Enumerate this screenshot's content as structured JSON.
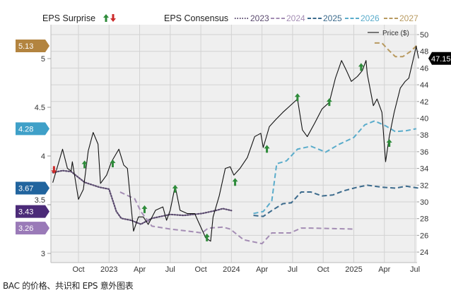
{
  "chart_data": {
    "type": "line",
    "title": "",
    "caption": "BAC 的价格、共识和 EPS 意外图表",
    "x_unit": "decimal year",
    "xlim": [
      2022.525,
      2025.53
    ],
    "x_ticks": [
      {
        "x": 2022.75,
        "label": "Oct"
      },
      {
        "x": 2023.0,
        "label": "2023"
      },
      {
        "x": 2023.25,
        "label": "Apr"
      },
      {
        "x": 2023.5,
        "label": "Jul"
      },
      {
        "x": 2023.75,
        "label": "Oct"
      },
      {
        "x": 2024.0,
        "label": "2024"
      },
      {
        "x": 2024.25,
        "label": "Apr"
      },
      {
        "x": 2024.5,
        "label": "Jul"
      },
      {
        "x": 2024.75,
        "label": "Oct"
      },
      {
        "x": 2025.0,
        "label": "2025"
      },
      {
        "x": 2025.25,
        "label": "Apr"
      },
      {
        "x": 2025.5,
        "label": "Jul"
      }
    ],
    "left_axis": {
      "label": "EPS",
      "ticks": [
        "5",
        "4.5",
        "4",
        "3.5",
        "3"
      ],
      "tick_values": [
        5,
        4.5,
        4,
        3.5,
        3
      ],
      "ylim": [
        2.9,
        5.2
      ]
    },
    "right_axis": {
      "label": "Price ($)",
      "ticks": [
        "50",
        "48",
        "46",
        "44",
        "42",
        "40",
        "38",
        "36",
        "34",
        "32",
        "30",
        "28",
        "26",
        "24"
      ],
      "tick_values": [
        50,
        48,
        46,
        44,
        42,
        40,
        38,
        36,
        34,
        32,
        30,
        28,
        26,
        24
      ],
      "ylim": [
        23,
        51.2
      ]
    },
    "legend": {
      "surprise_label": "EPS Surprise",
      "consensus_label": "EPS Consensus",
      "price_label": "Price ($)",
      "placement": "top"
    },
    "price_series": {
      "name": "Price ($)",
      "color": "#111111",
      "last_value_label": "47.15",
      "points": [
        [
          2022.54,
          32.3
        ],
        [
          2022.62,
          36.3
        ],
        [
          2022.66,
          34.0
        ],
        [
          2022.69,
          33.7
        ],
        [
          2022.7,
          34.8
        ],
        [
          2022.75,
          30.3
        ],
        [
          2022.79,
          31.5
        ],
        [
          2022.83,
          36.1
        ],
        [
          2022.87,
          38.3
        ],
        [
          2022.91,
          36.9
        ],
        [
          2022.93,
          32.2
        ],
        [
          2022.98,
          33.2
        ],
        [
          2023.02,
          34.8
        ],
        [
          2023.08,
          36.3
        ],
        [
          2023.12,
          34.4
        ],
        [
          2023.15,
          34.0
        ],
        [
          2023.2,
          26.5
        ],
        [
          2023.24,
          28.2
        ],
        [
          2023.28,
          28.2
        ],
        [
          2023.32,
          27.3
        ],
        [
          2023.38,
          29.0
        ],
        [
          2023.44,
          29.4
        ],
        [
          2023.47,
          27.8
        ],
        [
          2023.5,
          29.0
        ],
        [
          2023.54,
          31.9
        ],
        [
          2023.58,
          29.0
        ],
        [
          2023.64,
          28.6
        ],
        [
          2023.7,
          28.6
        ],
        [
          2023.74,
          27.3
        ],
        [
          2023.79,
          25.7
        ],
        [
          2023.83,
          25.3
        ],
        [
          2023.85,
          28.2
        ],
        [
          2023.9,
          30.7
        ],
        [
          2023.95,
          34.0
        ],
        [
          2023.99,
          34.2
        ],
        [
          2024.02,
          33.2
        ],
        [
          2024.07,
          34.0
        ],
        [
          2024.13,
          35.3
        ],
        [
          2024.19,
          37.8
        ],
        [
          2024.24,
          38.2
        ],
        [
          2024.26,
          36.5
        ],
        [
          2024.31,
          39.0
        ],
        [
          2024.36,
          39.8
        ],
        [
          2024.42,
          40.7
        ],
        [
          2024.48,
          41.5
        ],
        [
          2024.54,
          42.3
        ],
        [
          2024.58,
          38.6
        ],
        [
          2024.62,
          37.8
        ],
        [
          2024.68,
          39.4
        ],
        [
          2024.74,
          41.1
        ],
        [
          2024.8,
          41.9
        ],
        [
          2024.85,
          44.8
        ],
        [
          2024.9,
          46.9
        ],
        [
          2024.94,
          45.7
        ],
        [
          2024.98,
          44.4
        ],
        [
          2025.03,
          45.0
        ],
        [
          2025.07,
          45.7
        ],
        [
          2025.1,
          46.9
        ],
        [
          2025.11,
          45.3
        ],
        [
          2025.16,
          41.5
        ],
        [
          2025.19,
          42.3
        ],
        [
          2025.23,
          40.7
        ],
        [
          2025.26,
          34.8
        ],
        [
          2025.29,
          37.8
        ],
        [
          2025.33,
          40.7
        ],
        [
          2025.38,
          43.6
        ],
        [
          2025.42,
          44.4
        ],
        [
          2025.45,
          44.8
        ],
        [
          2025.49,
          47.3
        ],
        [
          2025.51,
          48.6
        ],
        [
          2025.53,
          47.15
        ]
      ]
    },
    "consensus_series": [
      {
        "name": "2023",
        "color": "#5a4a6e",
        "style": "dotted",
        "points": [
          [
            2022.54,
            3.83
          ],
          [
            2022.62,
            3.85
          ],
          [
            2022.69,
            3.84
          ],
          [
            2022.74,
            3.79
          ],
          [
            2022.8,
            3.73
          ],
          [
            2022.92,
            3.68
          ],
          [
            2023.0,
            3.66
          ],
          [
            2023.06,
            3.43
          ],
          [
            2023.1,
            3.36
          ],
          [
            2023.18,
            3.34
          ],
          [
            2023.26,
            3.3
          ],
          [
            2023.35,
            3.36
          ],
          [
            2023.5,
            3.4
          ],
          [
            2023.61,
            3.39
          ],
          [
            2023.76,
            3.41
          ],
          [
            2023.87,
            3.44
          ],
          [
            2023.93,
            3.46
          ],
          [
            2024.0,
            3.44
          ]
        ]
      },
      {
        "name": "2024",
        "color": "#a48db4",
        "style": "dashed",
        "points": [
          [
            2023.09,
            3.63
          ],
          [
            2023.21,
            3.56
          ],
          [
            2023.26,
            3.43
          ],
          [
            2023.35,
            3.28
          ],
          [
            2023.5,
            3.25
          ],
          [
            2023.64,
            3.23
          ],
          [
            2023.76,
            3.21
          ],
          [
            2023.81,
            3.26
          ],
          [
            2023.93,
            3.27
          ],
          [
            2023.99,
            3.25
          ],
          [
            2024.1,
            3.14
          ],
          [
            2024.25,
            3.1
          ],
          [
            2024.33,
            3.21
          ],
          [
            2024.48,
            3.21
          ],
          [
            2024.57,
            3.26
          ],
          [
            2024.65,
            3.26
          ],
          [
            2025.0,
            3.25
          ]
        ]
      },
      {
        "name": "2025",
        "color": "#3b6a8c",
        "style": "dashed",
        "points": [
          [
            2024.18,
            3.39
          ],
          [
            2024.26,
            3.38
          ],
          [
            2024.33,
            3.44
          ],
          [
            2024.42,
            3.51
          ],
          [
            2024.49,
            3.52
          ],
          [
            2024.57,
            3.63
          ],
          [
            2024.65,
            3.63
          ],
          [
            2024.74,
            3.59
          ],
          [
            2024.83,
            3.6
          ],
          [
            2024.91,
            3.64
          ],
          [
            2025.03,
            3.68
          ],
          [
            2025.11,
            3.7
          ],
          [
            2025.23,
            3.68
          ],
          [
            2025.34,
            3.67
          ],
          [
            2025.43,
            3.69
          ],
          [
            2025.53,
            3.67
          ]
        ]
      },
      {
        "name": "2026",
        "color": "#5aaccb",
        "style": "dashed",
        "points": [
          [
            2024.18,
            3.41
          ],
          [
            2024.26,
            3.43
          ],
          [
            2024.33,
            3.54
          ],
          [
            2024.37,
            3.92
          ],
          [
            2024.45,
            3.95
          ],
          [
            2024.54,
            4.07
          ],
          [
            2024.65,
            4.1
          ],
          [
            2024.77,
            4.04
          ],
          [
            2024.88,
            4.12
          ],
          [
            2025.0,
            4.19
          ],
          [
            2025.09,
            4.32
          ],
          [
            2025.17,
            4.36
          ],
          [
            2025.26,
            4.31
          ],
          [
            2025.34,
            4.25
          ],
          [
            2025.43,
            4.26
          ],
          [
            2025.51,
            4.28
          ]
        ]
      },
      {
        "name": "2027",
        "color": "#b89a60",
        "style": "dashed",
        "points": [
          [
            2025.17,
            5.16
          ],
          [
            2025.23,
            5.16
          ],
          [
            2025.29,
            5.08
          ],
          [
            2025.34,
            5.02
          ],
          [
            2025.4,
            5.02
          ],
          [
            2025.46,
            5.07
          ],
          [
            2025.52,
            5.14
          ]
        ]
      }
    ],
    "badges": [
      {
        "value": "5.13",
        "eps": 5.13,
        "color": "#b3843f"
      },
      {
        "value": "4.28",
        "eps": 4.28,
        "color": "#3fa0c8"
      },
      {
        "value": "3.67",
        "eps": 3.67,
        "color": "#21649e"
      },
      {
        "value": "3.43",
        "eps": 3.43,
        "color": "#4b2a78"
      },
      {
        "value": "3.26",
        "eps": 3.26,
        "color": "#9a7ab8"
      }
    ],
    "surprises": [
      {
        "x": 2022.55,
        "eps": 3.86,
        "direction": "down"
      },
      {
        "x": 2022.8,
        "eps": 3.91,
        "direction": "up"
      },
      {
        "x": 2023.03,
        "eps": 3.92,
        "direction": "up"
      },
      {
        "x": 2023.29,
        "eps": 3.45,
        "direction": "up"
      },
      {
        "x": 2023.54,
        "eps": 3.66,
        "direction": "up"
      },
      {
        "x": 2023.8,
        "eps": 3.16,
        "direction": "up"
      },
      {
        "x": 2024.03,
        "eps": 3.73,
        "direction": "up"
      },
      {
        "x": 2024.29,
        "eps": 4.07,
        "direction": "up"
      },
      {
        "x": 2024.54,
        "eps": 4.6,
        "direction": "up"
      },
      {
        "x": 2024.8,
        "eps": 4.55,
        "direction": "up"
      },
      {
        "x": 2025.06,
        "eps": 4.91,
        "direction": "up"
      },
      {
        "x": 2025.29,
        "eps": 4.13,
        "direction": "up"
      }
    ],
    "colors": {
      "up": "#2e8b3a",
      "down": "#cc2b2b",
      "plot_bg": "#efefef",
      "grid": "#d2d2d2"
    }
  }
}
